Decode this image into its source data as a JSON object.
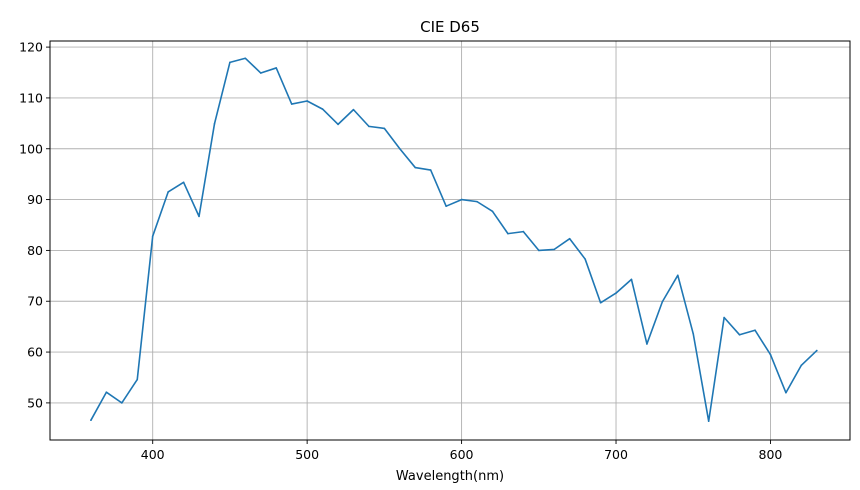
{
  "chart_data": {
    "type": "line",
    "title": "CIE D65",
    "xlabel": "Wavelength(nm)",
    "ylabel": "",
    "xlim": [
      333.5,
      851.5
    ],
    "ylim": [
      42.7,
      121.2
    ],
    "xticks": [
      400,
      500,
      600,
      700,
      800
    ],
    "yticks": [
      50,
      60,
      70,
      80,
      90,
      100,
      110,
      120
    ],
    "grid": true,
    "legend": "none",
    "series": [
      {
        "color": "#1f77b4",
        "x": [
          360,
          370,
          380,
          390,
          400,
          410,
          420,
          430,
          440,
          450,
          460,
          470,
          480,
          490,
          500,
          510,
          520,
          530,
          540,
          550,
          560,
          570,
          580,
          590,
          600,
          610,
          620,
          630,
          640,
          650,
          660,
          670,
          680,
          690,
          700,
          710,
          720,
          730,
          740,
          750,
          760,
          770,
          780,
          790,
          800,
          810,
          820,
          830
        ],
        "y": [
          46.6,
          52.1,
          50.0,
          54.6,
          82.8,
          91.5,
          93.4,
          86.7,
          104.9,
          117.0,
          117.8,
          114.9,
          115.9,
          108.8,
          109.4,
          107.8,
          104.8,
          107.7,
          104.4,
          104.0,
          100.0,
          96.3,
          95.8,
          88.7,
          90.0,
          89.6,
          87.7,
          83.3,
          83.7,
          80.0,
          80.2,
          82.3,
          78.3,
          69.7,
          71.6,
          74.3,
          61.6,
          69.9,
          75.1,
          63.6,
          46.4,
          66.8,
          63.4,
          64.3,
          59.5,
          52.0,
          57.4,
          60.3
        ]
      }
    ]
  }
}
